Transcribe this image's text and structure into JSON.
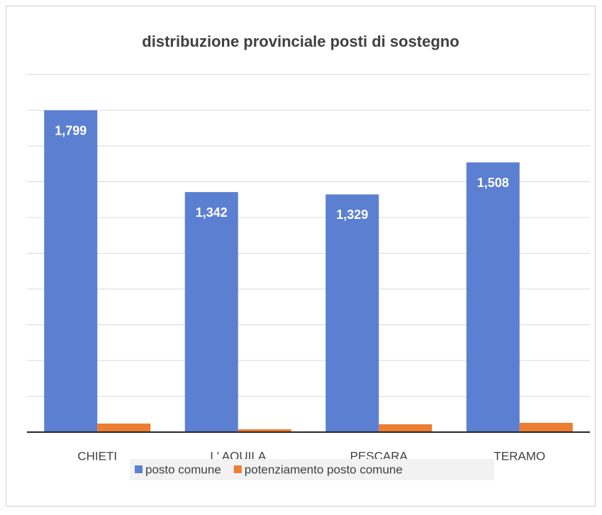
{
  "chart_data": {
    "type": "bar",
    "title": "distribuzione provinciale posti di sostegno",
    "categories": [
      "CHIETI",
      "L' AQUILA",
      "PESCARA",
      "TERAMO"
    ],
    "series": [
      {
        "name": "posto comune",
        "color": "#5b7fd1",
        "values": [
          1799,
          1342,
          1329,
          1508
        ],
        "value_labels": [
          "1,799",
          "1,342",
          "1,329",
          "1,508"
        ]
      },
      {
        "name": "potenziamento posto comune",
        "color": "#ed7d31",
        "values": [
          48,
          16,
          44,
          52
        ]
      }
    ],
    "ylim": [
      0,
      2000
    ],
    "yticks": [
      0,
      200,
      400,
      600,
      800,
      1000,
      1200,
      1400,
      1600,
      1800,
      2000
    ],
    "grid": true,
    "legend": "bottom"
  }
}
